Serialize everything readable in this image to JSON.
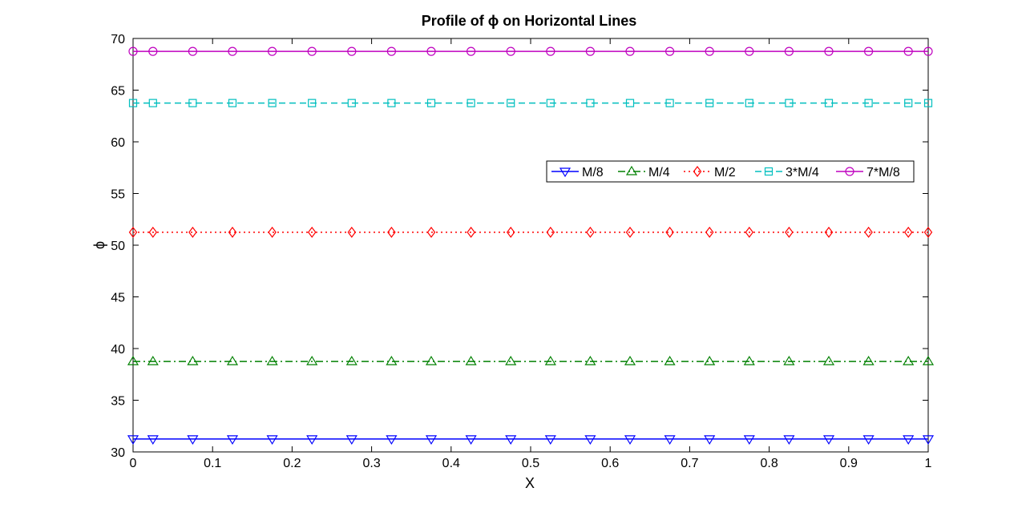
{
  "chart_data": {
    "type": "line",
    "title": "Profile of ϕ on Horizontal Lines",
    "xlabel": "X",
    "ylabel": "ϕ",
    "xlim": [
      0,
      1
    ],
    "ylim": [
      30,
      70
    ],
    "xticks": [
      "0",
      "0.1",
      "0.2",
      "0.3",
      "0.4",
      "0.5",
      "0.6",
      "0.7",
      "0.8",
      "0.9",
      "1"
    ],
    "yticks": [
      "30",
      "35",
      "40",
      "45",
      "50",
      "55",
      "60",
      "65",
      "70"
    ],
    "grid": false,
    "legend_position": "center-right",
    "x": [
      0,
      0.025,
      0.075,
      0.125,
      0.175,
      0.225,
      0.275,
      0.325,
      0.375,
      0.425,
      0.475,
      0.525,
      0.575,
      0.625,
      0.675,
      0.725,
      0.775,
      0.825,
      0.875,
      0.925,
      0.975,
      1
    ],
    "series": [
      {
        "name": "M/8",
        "value": 31.25,
        "color": "#0000ff",
        "line_style": "solid",
        "marker": "triangle-down"
      },
      {
        "name": "M/4",
        "value": 38.75,
        "color": "#008000",
        "line_style": "dashdot",
        "marker": "triangle-up"
      },
      {
        "name": "M/2",
        "value": 51.25,
        "color": "#ff0000",
        "line_style": "dotted",
        "marker": "diamond"
      },
      {
        "name": "3*M/4",
        "value": 63.75,
        "color": "#00bfbf",
        "line_style": "dashed",
        "marker": "square"
      },
      {
        "name": "7*M/8",
        "value": 68.75,
        "color": "#bf00bf",
        "line_style": "solid",
        "marker": "circle"
      }
    ]
  }
}
